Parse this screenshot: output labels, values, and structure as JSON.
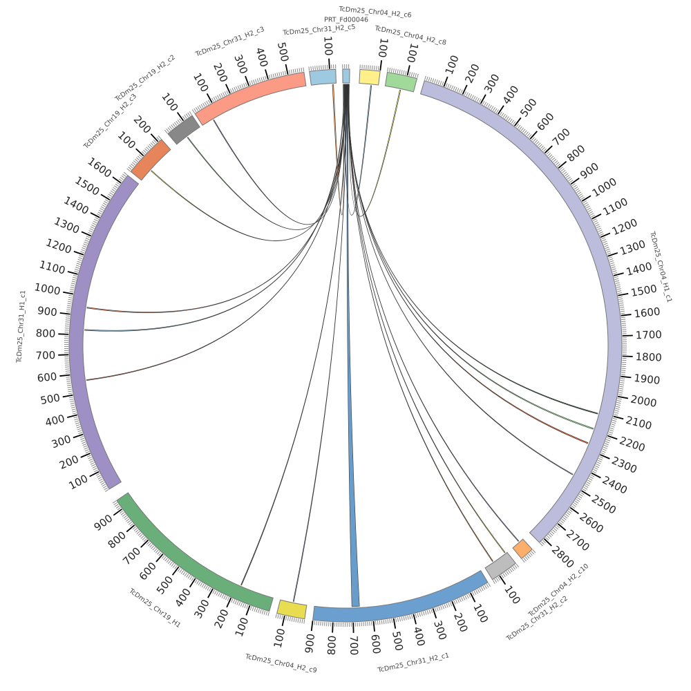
{
  "chart_data": {
    "type": "chord",
    "title": "",
    "tick_major_step": 100,
    "tick_minor_step": 10,
    "segments": [
      {
        "name": "TcDm25_Chr31_H2_c3",
        "length": 580,
        "color": "#fb9a85"
      },
      {
        "name": "TcDm25_Chr31_H2_c5",
        "length": 130,
        "color": "#9ecae1"
      },
      {
        "name": "PRT_Fd00046",
        "length": 35,
        "color": "#9ecae1"
      },
      {
        "name": "TcDm25_Chr04_H2_c6",
        "length": 100,
        "color": "#fff08a"
      },
      {
        "name": "TcDm25_Chr04_H2_c8",
        "length": 150,
        "color": "#a1d99b"
      },
      {
        "name": "TcDm25_Chr04_H1_c1",
        "length": 2830,
        "color": "#bcbddc"
      },
      {
        "name": "TcDm25_Chr04_H2_c10",
        "length": 70,
        "color": "#fdae6b"
      },
      {
        "name": "TcDm25_Chr31_H2_c2",
        "length": 140,
        "color": "#bdbdbd"
      },
      {
        "name": "TcDm25_Chr31_H2_c1",
        "length": 900,
        "color": "#6b9fcf"
      },
      {
        "name": "TcDm25_Chr04_H2_c9",
        "length": 140,
        "color": "#e8dc50"
      },
      {
        "name": "TcDm25_Chr19_H1",
        "length": 950,
        "color": "#6aaf7a"
      },
      {
        "name": "TcDm25_Chr31_H1_c1",
        "length": 1650,
        "color": "#9e8fc4"
      },
      {
        "name": "TcDm25_Chr19_H2_c3",
        "length": 220,
        "color": "#e6855a"
      },
      {
        "name": "TcDm25_Chr19_H2_c2",
        "length": 150,
        "color": "#888888"
      }
    ],
    "links": [
      {
        "from": [
          0,
          62,
          66
        ],
        "to": [
          2,
          10,
          12
        ],
        "color": "#8c7fb8"
      },
      {
        "from": [
          13,
          65,
          69
        ],
        "to": [
          2,
          12,
          14
        ],
        "color": "#7fc97f"
      },
      {
        "from": [
          12,
          69,
          73
        ],
        "to": [
          2,
          14,
          16
        ],
        "color": "#ffff66"
      },
      {
        "from": [
          11,
          941,
          946
        ],
        "to": [
          2,
          16,
          18
        ],
        "color": "#e8855a"
      },
      {
        "from": [
          11,
          824,
          829
        ],
        "to": [
          2,
          5,
          8
        ],
        "color": "#7fb4d4"
      },
      {
        "from": [
          11,
          562,
          566
        ],
        "to": [
          2,
          18,
          20
        ],
        "color": "#c0604a"
      },
      {
        "from": [
          10,
          177,
          181
        ],
        "to": [
          2,
          20,
          22
        ],
        "color": "#555555"
      },
      {
        "from": [
          9,
          69,
          73
        ],
        "to": [
          2,
          22,
          23
        ],
        "color": "#8c7fb8"
      },
      {
        "from": [
          8,
          665,
          705
        ],
        "to": [
          2,
          24,
          30
        ],
        "color": "#5f97c8"
      },
      {
        "from": [
          7,
          86,
          90
        ],
        "to": [
          2,
          30,
          31
        ],
        "color": "#e08030"
      },
      {
        "from": [
          7,
          8,
          12
        ],
        "to": [
          2,
          31,
          32
        ],
        "color": "#e8e050"
      },
      {
        "from": [
          6,
          22,
          26
        ],
        "to": [
          2,
          32,
          33
        ],
        "color": "#9a9ad0"
      },
      {
        "from": [
          5,
          2105,
          2110
        ],
        "to": [
          2,
          23,
          24
        ],
        "color": "#2f5a3a"
      },
      {
        "from": [
          5,
          2187,
          2193
        ],
        "to": [
          2,
          26,
          27
        ],
        "color": "#8fd08f"
      },
      {
        "from": [
          5,
          2267,
          2273
        ],
        "to": [
          2,
          27,
          28
        ],
        "color": "#e06030"
      },
      {
        "from": [
          5,
          2450,
          2454
        ],
        "to": [
          2,
          28,
          29
        ],
        "color": "#8090b0"
      },
      {
        "from": [
          1,
          110,
          116
        ],
        "to": [
          2,
          2,
          4
        ],
        "color": "#f4a460"
      },
      {
        "from": [
          3,
          60,
          65
        ],
        "to": [
          2,
          8,
          10
        ],
        "color": "#7fb4d4"
      },
      {
        "from": [
          4,
          78,
          83
        ],
        "to": [
          2,
          33,
          34
        ],
        "color": "#f0f060"
      }
    ]
  }
}
